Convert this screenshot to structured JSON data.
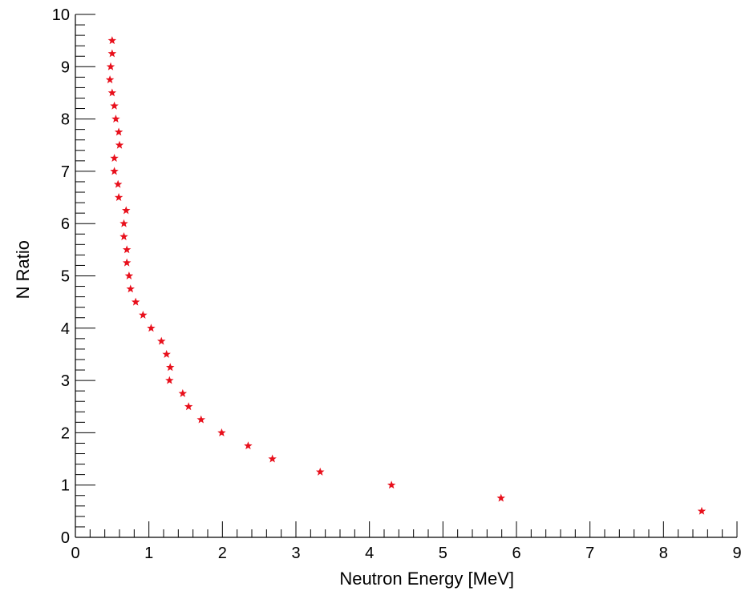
{
  "chart_data": {
    "type": "scatter",
    "xlabel": "Neutron Energy [MeV]",
    "ylabel": "N Ratio",
    "xlim": [
      0,
      9
    ],
    "ylim": [
      0,
      10
    ],
    "x_ticks": [
      "0",
      "1",
      "2",
      "3",
      "4",
      "5",
      "6",
      "7",
      "8",
      "9"
    ],
    "y_ticks": [
      "0",
      "1",
      "2",
      "3",
      "4",
      "5",
      "6",
      "7",
      "8",
      "9",
      "10"
    ],
    "grid": false,
    "marker": "star",
    "colors": {
      "marker": "#e8101c",
      "axis": "#000000"
    },
    "series": [
      {
        "points": [
          [
            0.5,
            9.5
          ],
          [
            0.5,
            9.25
          ],
          [
            0.48,
            9.0
          ],
          [
            0.47,
            8.75
          ],
          [
            0.5,
            8.5
          ],
          [
            0.53,
            8.25
          ],
          [
            0.55,
            8.0
          ],
          [
            0.59,
            7.75
          ],
          [
            0.6,
            7.5
          ],
          [
            0.53,
            7.25
          ],
          [
            0.53,
            7.0
          ],
          [
            0.58,
            6.75
          ],
          [
            0.59,
            6.5
          ],
          [
            0.69,
            6.25
          ],
          [
            0.66,
            6.0
          ],
          [
            0.66,
            5.75
          ],
          [
            0.7,
            5.5
          ],
          [
            0.7,
            5.25
          ],
          [
            0.73,
            5.0
          ],
          [
            0.75,
            4.75
          ],
          [
            0.82,
            4.5
          ],
          [
            0.92,
            4.25
          ],
          [
            1.03,
            4.0
          ],
          [
            1.17,
            3.75
          ],
          [
            1.24,
            3.5
          ],
          [
            1.29,
            3.25
          ],
          [
            1.28,
            3.0
          ],
          [
            1.46,
            2.75
          ],
          [
            1.54,
            2.5
          ],
          [
            1.71,
            2.25
          ],
          [
            1.99,
            2.0
          ],
          [
            2.35,
            1.75
          ],
          [
            2.68,
            1.5
          ],
          [
            3.33,
            1.25
          ],
          [
            4.3,
            1.0
          ],
          [
            5.79,
            0.75
          ],
          [
            8.52,
            0.5
          ]
        ]
      }
    ]
  }
}
